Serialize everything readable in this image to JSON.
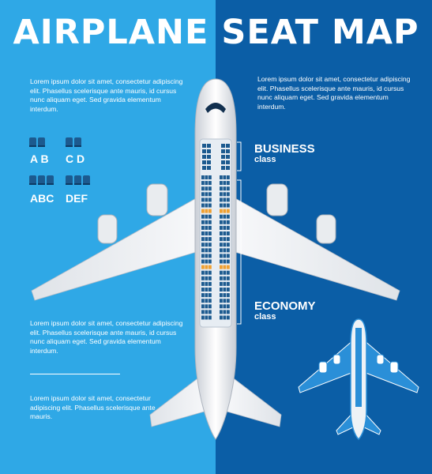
{
  "title": "AIRPLANE SEAT MAP",
  "texts": {
    "top_left": "Lorem ipsum dolor sit amet, consectetur adipiscing elit. Phasellus scelerisque ante mauris, id cursus nunc aliquam eget. Sed gravida elementum interdum.",
    "top_right": "Lorem ipsum dolor sit amet, consectetur adipiscing elit. Phasellus scelerisque ante mauris, id cursus nunc aliquam eget. Sed gravida elementum interdum.",
    "mid_left": "Lorem ipsum dolor sit amet, consectetur adipiscing elit. Phasellus scelerisque ante mauris, id cursus nunc aliquam eget. Sed gravida elementum interdum.",
    "bottom_left": "Lorem ipsum dolor sit amet, consectetur adipiscing elit. Phasellus scelerisque ante mauris."
  },
  "seat_labels": [
    "A B",
    "C D",
    "ABC",
    "DEF"
  ],
  "business": {
    "name": "BUSINESS",
    "sub": "class"
  },
  "economy": {
    "name": "ECONOMY",
    "sub": "class"
  },
  "colors": {
    "left_bg": "#2fa8e6",
    "right_bg": "#0b5ea6",
    "seat": "#1c5a8f",
    "exit_row": "#f0a030"
  },
  "icons": [
    "airplane-top-view",
    "small-airplane",
    "seat-icon"
  ]
}
